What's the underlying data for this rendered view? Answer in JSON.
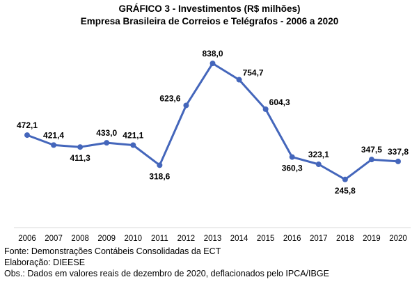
{
  "chart_data": {
    "type": "line",
    "title": "GRÁFICO 3 - Investimentos (R$ milhões)",
    "subtitle": "Empresa Brasileira de Correios e Telégrafos - 2006 a 2020",
    "xlabel": "",
    "ylabel": "",
    "grid": false,
    "categories": [
      "2006",
      "2007",
      "2008",
      "2009",
      "2010",
      "2011",
      "2012",
      "2013",
      "2014",
      "2015",
      "2016",
      "2017",
      "2018",
      "2019",
      "2020"
    ],
    "series": [
      {
        "name": "Investimentos",
        "color": "#4466bb",
        "values": [
          472.1,
          421.4,
          411.3,
          433.0,
          421.1,
          318.6,
          623.6,
          838.0,
          754.7,
          604.3,
          360.3,
          323.1,
          245.8,
          347.5,
          337.8
        ],
        "labels": [
          "472,1",
          "421,4",
          "411,3",
          "433,0",
          "421,1",
          "318,6",
          "623,6",
          "838,0",
          "754,7",
          "604,3",
          "360,3",
          "323,1",
          "245,8",
          "347,5",
          "337,8"
        ],
        "label_positions": [
          "above",
          "above",
          "below",
          "above",
          "above",
          "below",
          "left",
          "above",
          "right",
          "right",
          "below",
          "above",
          "below",
          "above",
          "above"
        ]
      }
    ]
  },
  "notes": {
    "source": "Fonte: Demonstrações Contábeis Consolidadas da ECT",
    "elaboration": "Elaboração: DIEESE",
    "obs": "Obs.: Dados em valores reais de dezembro de 2020, deflacionados pelo IPCA/IBGE"
  }
}
